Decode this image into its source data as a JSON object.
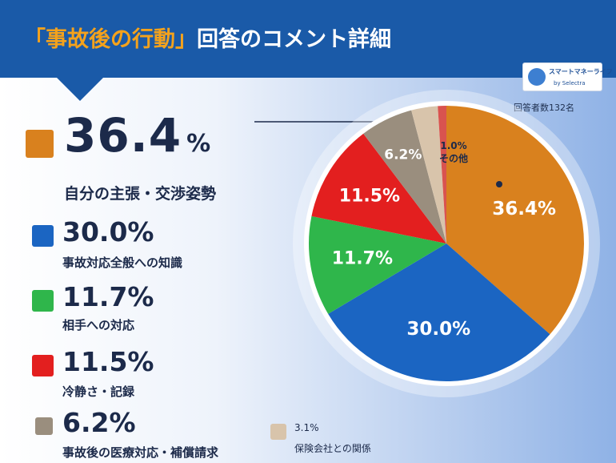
{
  "header": {
    "title_highlight": "「事故後の行動」",
    "title_rest": "回答のコメント詳細"
  },
  "logo": {
    "name": "スマートマネーライフ",
    "sub": "by Selectra"
  },
  "respondents": "回答者数132名",
  "legend": [
    {
      "value": "36.4",
      "sign": "%",
      "label": "自分の主張・交渉姿勢",
      "color": "#d9811e"
    },
    {
      "value": "30.0%",
      "label": "事故対応全般への知識",
      "color": "#1b65c2"
    },
    {
      "value": "11.7%",
      "label": "相手への対応",
      "color": "#2fb64b"
    },
    {
      "value": "11.5%",
      "label": "冷静さ・記録",
      "color": "#e31f1f"
    },
    {
      "value": "6.2%",
      "label": "事故後の医療対応・補償請求",
      "color": "#9a8e7e"
    }
  ],
  "small_legend": {
    "value": "3.1%",
    "label": "保険会社との関係",
    "color": "#d8c4ab"
  },
  "chart_data": {
    "type": "pie",
    "title": "",
    "slices": [
      {
        "label": "自分の主張・交渉姿勢",
        "value": 36.4,
        "display": "36.4%",
        "color": "#d9811e"
      },
      {
        "label": "事故対応全般への知識",
        "value": 30.0,
        "display": "30.0%",
        "color": "#1b65c2"
      },
      {
        "label": "相手への対応",
        "value": 11.7,
        "display": "11.7%",
        "color": "#2fb64b"
      },
      {
        "label": "冷静さ・記録",
        "value": 11.5,
        "display": "11.5%",
        "color": "#e31f1f"
      },
      {
        "label": "事故後の医療対応・補償請求",
        "value": 6.2,
        "display": "6.2%",
        "color": "#9a8e7e"
      },
      {
        "label": "保険会社との関係",
        "value": 3.1,
        "display": "",
        "color": "#d8c4ab"
      },
      {
        "label": "その他",
        "value": 1.0,
        "display": "1.0%\nその他",
        "color": "#d9534f"
      }
    ],
    "start": "top",
    "direction": "clockwise"
  }
}
